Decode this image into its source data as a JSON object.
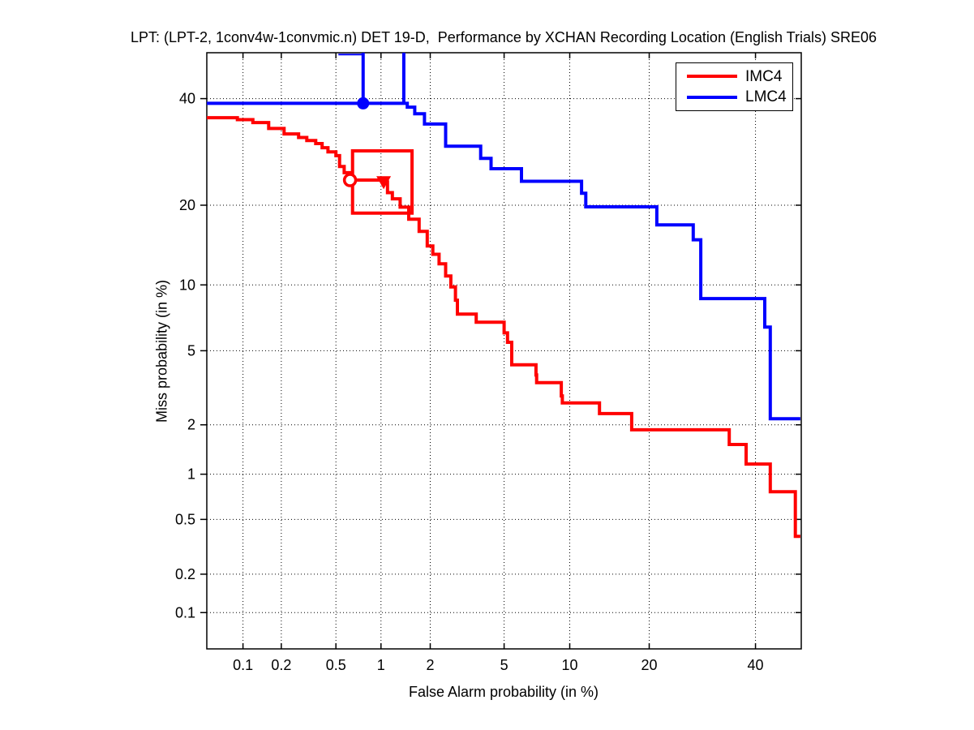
{
  "chart_data": {
    "type": "line",
    "variant": "DET-curve",
    "scale": "probit-probit",
    "title": "LPT: (LPT-2, 1conv4w-1convmic.n) DET 19-D,  Performance by XCHAN Recording Location (English Trials) SRE06",
    "xlabel": "False Alarm probability (in %)",
    "ylabel": "Miss probability (in %)",
    "x_range_pct": [
      0.05,
      50
    ],
    "y_range_pct": [
      0.05,
      50
    ],
    "x_ticks_pct": [
      0.1,
      0.2,
      0.5,
      1,
      2,
      5,
      10,
      20,
      40
    ],
    "x_tick_labels": [
      "0.1",
      "0.2",
      "0.5",
      "1",
      "2",
      "5",
      "10",
      "20",
      "40"
    ],
    "y_ticks_pct": [
      0.1,
      0.2,
      0.5,
      1,
      2,
      5,
      10,
      20,
      40
    ],
    "y_tick_labels": [
      "0.1",
      "0.2",
      "0.5",
      "1",
      "2",
      "5",
      "10",
      "20",
      "40"
    ],
    "grid": "dotted",
    "legend_position": "top-right",
    "series": [
      {
        "name": "IMC4",
        "color": "#ff0000",
        "points": [
          [
            0.05,
            36.0
          ],
          [
            0.09,
            35.6
          ],
          [
            0.12,
            35.0
          ],
          [
            0.16,
            33.8
          ],
          [
            0.21,
            32.7
          ],
          [
            0.27,
            32.0
          ],
          [
            0.31,
            31.4
          ],
          [
            0.36,
            30.8
          ],
          [
            0.4,
            30.0
          ],
          [
            0.44,
            29.2
          ],
          [
            0.5,
            28.5
          ],
          [
            0.53,
            26.5
          ],
          [
            0.57,
            25.4
          ],
          [
            0.63,
            24.1
          ],
          [
            1.04,
            23.8
          ],
          [
            1.1,
            22.0
          ],
          [
            1.18,
            21.0
          ],
          [
            1.32,
            19.7
          ],
          [
            1.49,
            17.9
          ],
          [
            1.72,
            16.2
          ],
          [
            1.92,
            14.3
          ],
          [
            2.07,
            13.3
          ],
          [
            2.25,
            12.2
          ],
          [
            2.45,
            10.9
          ],
          [
            2.62,
            9.8
          ],
          [
            2.78,
            8.6
          ],
          [
            2.85,
            7.46
          ],
          [
            3.6,
            6.85
          ],
          [
            5.0,
            6.1
          ],
          [
            5.2,
            5.5
          ],
          [
            5.45,
            4.25
          ],
          [
            7.1,
            3.77
          ],
          [
            7.15,
            3.43
          ],
          [
            9.2,
            2.91
          ],
          [
            9.3,
            2.66
          ],
          [
            13.2,
            2.32
          ],
          [
            17.4,
            1.87
          ],
          [
            34.5,
            1.53
          ],
          [
            38.0,
            1.16
          ],
          [
            43.2,
            0.77
          ],
          [
            48.7,
            0.38
          ],
          [
            49.8,
            0.38
          ]
        ],
        "markers": [
          {
            "shape": "open-circle",
            "fa_pct": 0.625,
            "miss_pct": 24.1
          },
          {
            "shape": "filled-triangle-down",
            "fa_pct": 1.04,
            "miss_pct": 23.8
          }
        ],
        "box_overlay": {
          "fa_pct": [
            0.65,
            1.56
          ],
          "miss_pct": [
            18.8,
            29.4
          ]
        }
      },
      {
        "name": "LMC4",
        "color": "#0000ff",
        "points": [
          [
            0.05,
            39.0
          ],
          [
            1.46,
            38.2
          ],
          [
            1.62,
            36.8
          ],
          [
            1.85,
            34.7
          ],
          [
            2.45,
            30.3
          ],
          [
            3.8,
            28.0
          ],
          [
            4.3,
            26.1
          ],
          [
            6.07,
            23.9
          ],
          [
            11.2,
            21.9
          ],
          [
            11.65,
            19.75
          ],
          [
            21.2,
            17.1
          ],
          [
            27.5,
            15.1
          ],
          [
            28.9,
            8.74
          ],
          [
            42.0,
            6.5
          ],
          [
            43.2,
            2.17
          ],
          [
            49.8,
            2.17
          ]
        ],
        "markers": [
          {
            "shape": "filled-circle",
            "fa_pct": 0.765,
            "miss_pct": 39.0
          }
        ],
        "vline_overlays": [
          {
            "fa_pct": 0.765,
            "miss_from_pct": 50,
            "miss_to_pct": 39.0
          },
          {
            "fa_pct": 1.39,
            "miss_from_pct": 50,
            "miss_to_pct": 39.0
          }
        ],
        "top_edge_segment": {
          "miss_pct": 49.6,
          "fa_pct": [
            0.52,
            0.765
          ]
        }
      }
    ]
  }
}
